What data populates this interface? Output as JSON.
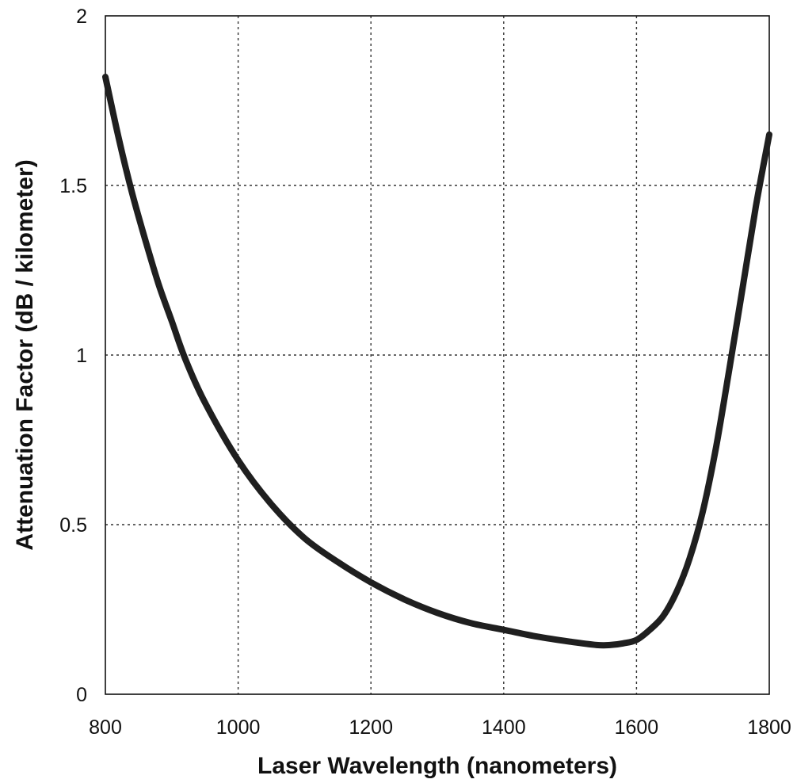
{
  "chart_data": {
    "type": "line",
    "title": "",
    "xlabel": "Laser Wavelength (nanometers)",
    "ylabel": "Attenuation Factor (dB / kilometer)",
    "xlim": [
      800,
      1800
    ],
    "ylim": [
      0,
      2
    ],
    "x_ticks": [
      "800",
      "1000",
      "1200",
      "1400",
      "1600",
      "1800"
    ],
    "y_ticks": [
      "0",
      "0.5",
      "1",
      "1.5",
      "2"
    ],
    "x_tick_values": [
      800,
      1000,
      1200,
      1400,
      1600,
      1800
    ],
    "y_tick_values": [
      0,
      0.5,
      1,
      1.5,
      2
    ],
    "grid": true,
    "legend": "none",
    "line_color": "#1f1f1f",
    "series": [
      {
        "x": [
          800,
          820,
          840,
          860,
          880,
          900,
          920,
          950,
          1000,
          1050,
          1100,
          1150,
          1200,
          1250,
          1300,
          1350,
          1400,
          1450,
          1500,
          1540,
          1560,
          1580,
          1600,
          1620,
          1640,
          1660,
          1680,
          1700,
          1720,
          1740,
          1760,
          1780,
          1800
        ],
        "y": [
          1.82,
          1.64,
          1.48,
          1.34,
          1.21,
          1.1,
          0.99,
          0.86,
          0.69,
          0.56,
          0.46,
          0.39,
          0.33,
          0.28,
          0.24,
          0.21,
          0.19,
          0.17,
          0.155,
          0.145,
          0.145,
          0.15,
          0.16,
          0.19,
          0.23,
          0.3,
          0.4,
          0.54,
          0.73,
          0.96,
          1.2,
          1.44,
          1.65
        ]
      }
    ]
  }
}
